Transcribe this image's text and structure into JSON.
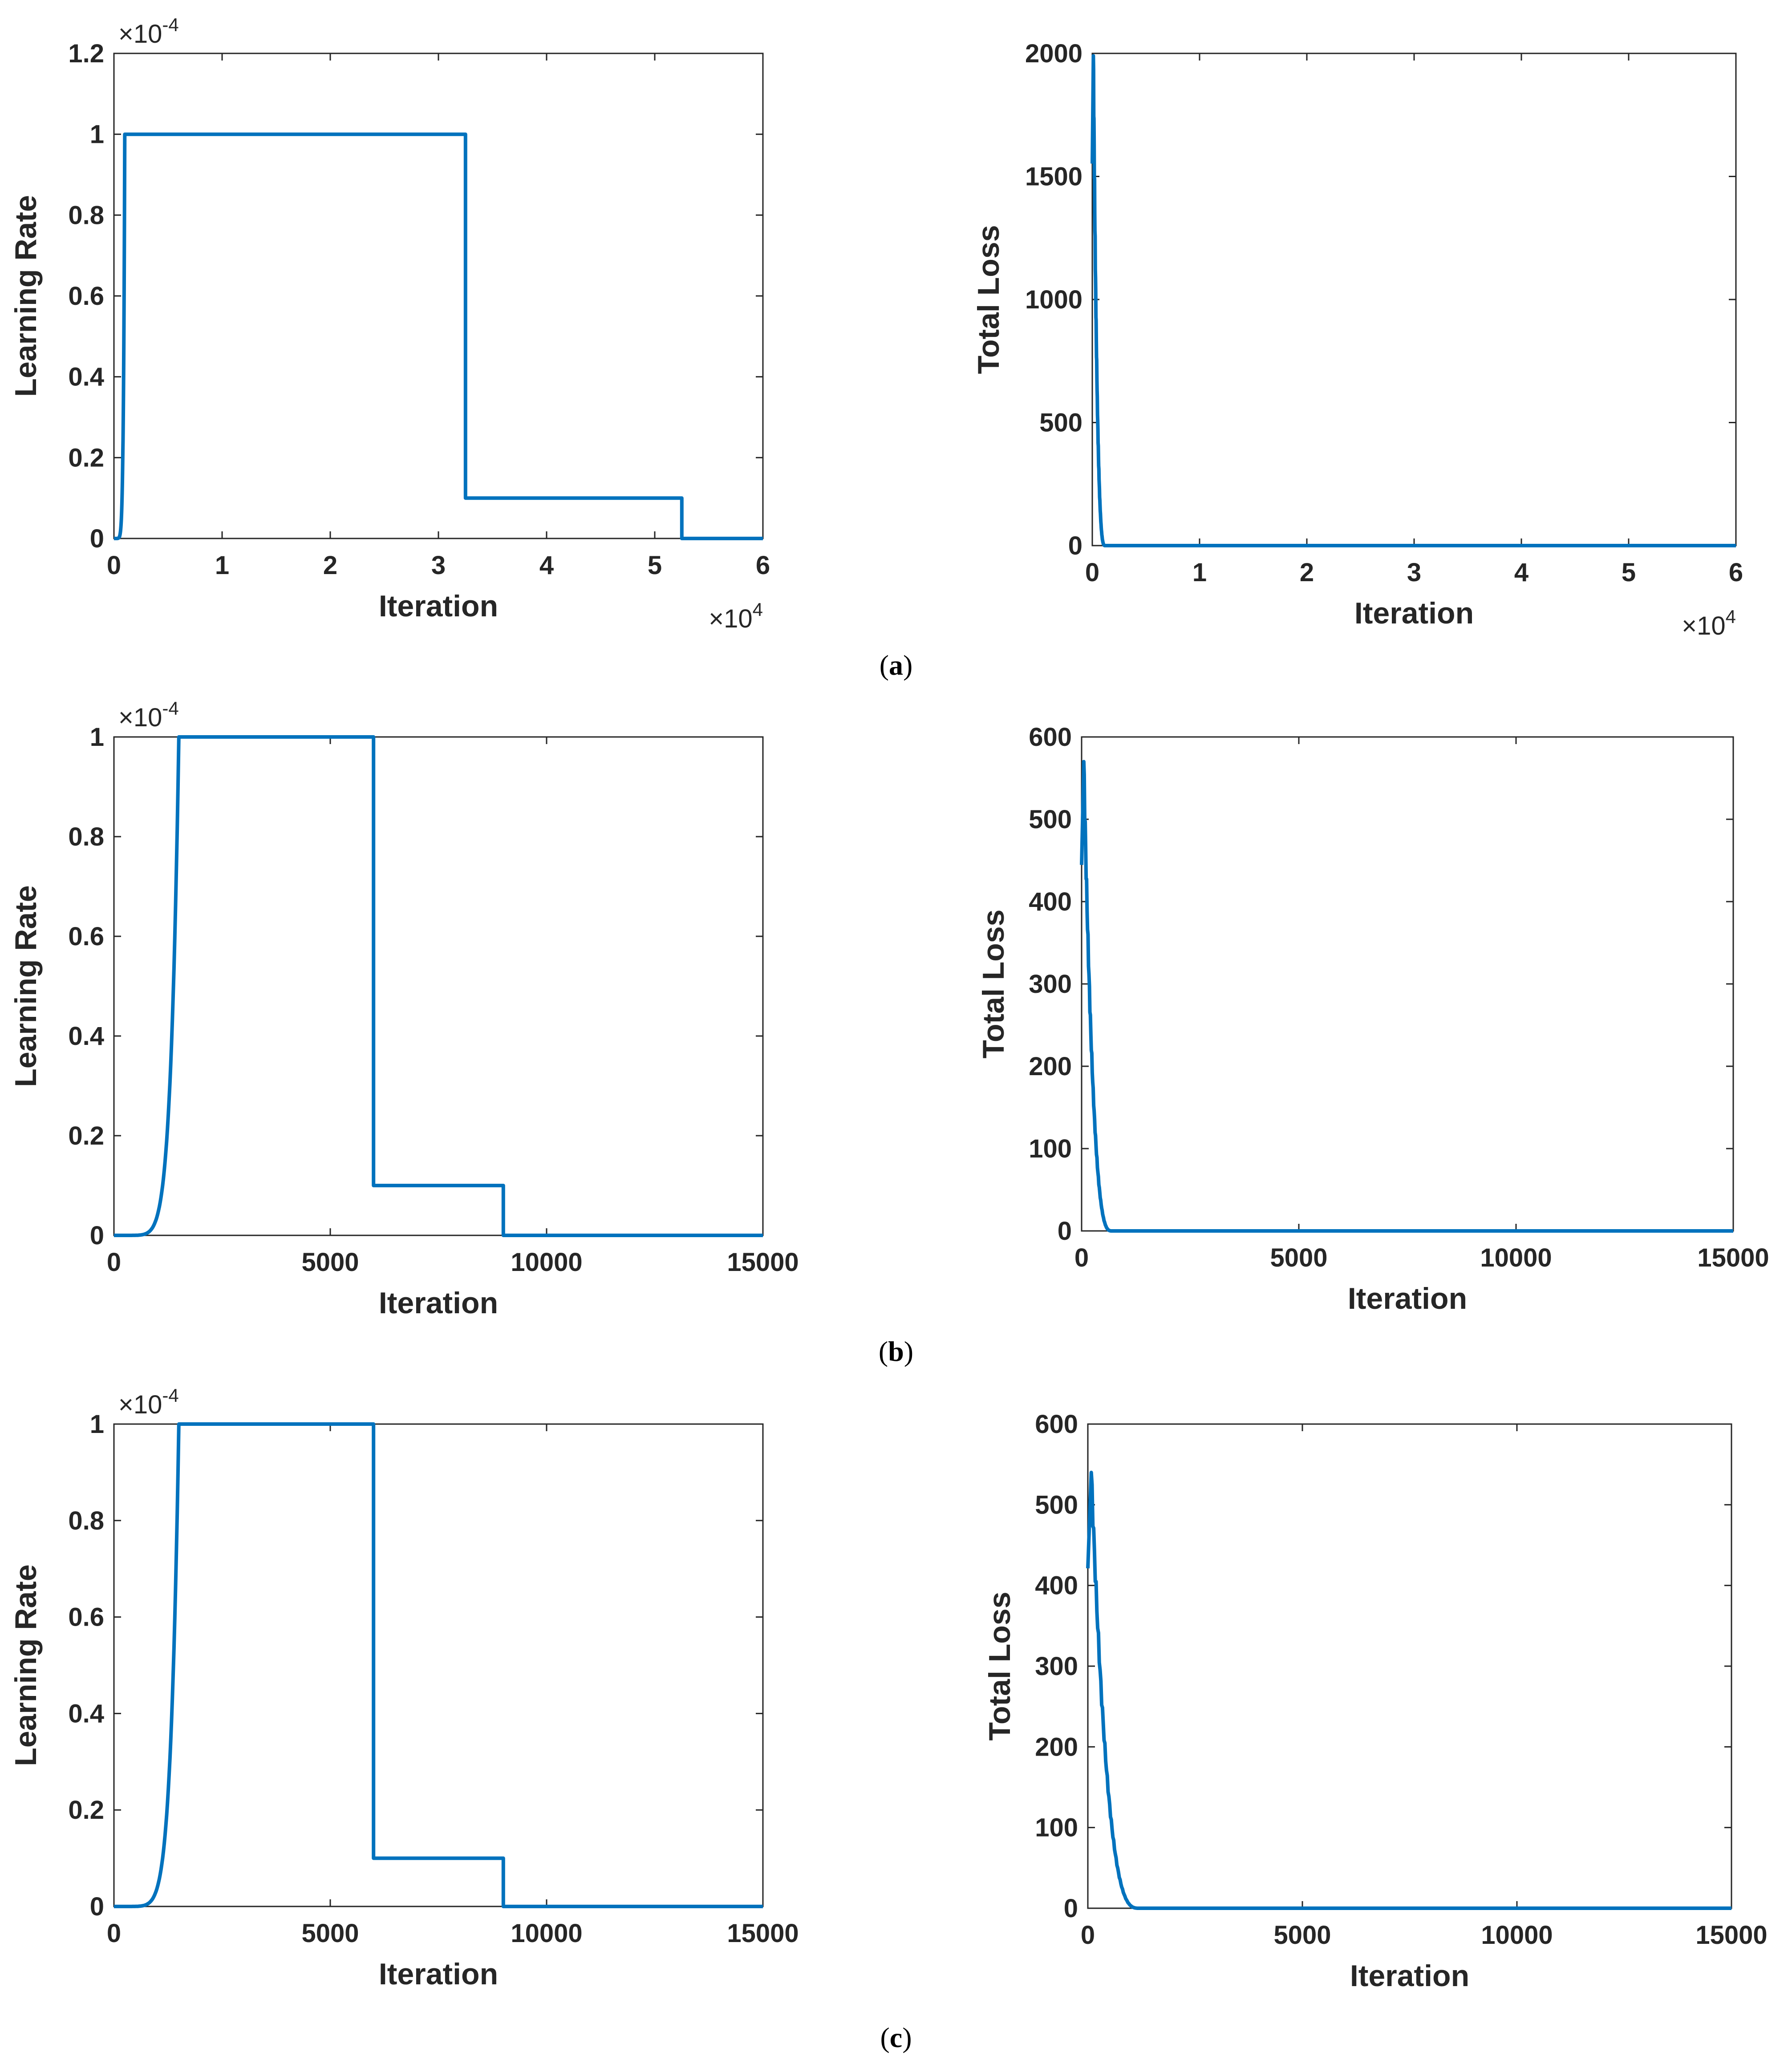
{
  "colors": {
    "line": "#0072BD",
    "axis": "#262626"
  },
  "panel_labels": [
    "a",
    "b",
    "c"
  ],
  "chart_data": [
    {
      "id": "a-lr",
      "type": "line",
      "panel": "a",
      "xlabel": "Iteration",
      "ylabel": "Learning Rate",
      "x_multiplier": "4",
      "y_multiplier": "-4",
      "xlim": [
        0,
        6
      ],
      "ylim": [
        0,
        1.2
      ],
      "xticks": [
        0,
        1,
        2,
        3,
        4,
        5,
        6
      ],
      "yticks": [
        0,
        0.2,
        0.4,
        0.6,
        0.8,
        1,
        1.2
      ],
      "series": [
        {
          "name": "learning rate",
          "shape": "warmup_step",
          "x": [
            0,
            0.06,
            0.1,
            3.25,
            3.25,
            5.25,
            5.25,
            6
          ],
          "y": [
            0,
            0.1,
            1,
            1,
            0.1,
            0.1,
            0,
            0
          ]
        }
      ]
    },
    {
      "id": "a-loss",
      "type": "line",
      "panel": "a",
      "xlabel": "Iteration",
      "ylabel": "Total Loss",
      "x_multiplier": "4",
      "y_multiplier": null,
      "xlim": [
        0,
        6
      ],
      "ylim": [
        0,
        2000
      ],
      "xticks": [
        0,
        1,
        2,
        3,
        4,
        5,
        6
      ],
      "yticks": [
        0,
        500,
        1000,
        1500,
        2000
      ],
      "series": [
        {
          "name": "total loss",
          "shape": "decay",
          "peak_x": 0.01,
          "peak_y": 1990,
          "decay_end_x": 0.12,
          "end_x": 6
        }
      ]
    },
    {
      "id": "b-lr",
      "type": "line",
      "panel": "b",
      "xlabel": "Iteration",
      "ylabel": "Learning Rate",
      "x_multiplier": null,
      "y_multiplier": "-4",
      "xlim": [
        0,
        15000
      ],
      "ylim": [
        0,
        1
      ],
      "xticks": [
        0,
        5000,
        10000,
        15000
      ],
      "yticks": [
        0,
        0.2,
        0.4,
        0.6,
        0.8,
        1
      ],
      "series": [
        {
          "name": "learning rate",
          "shape": "warmup_step",
          "x": [
            0,
            1000,
            1500,
            6000,
            6000,
            9000,
            9000,
            15000
          ],
          "y": [
            0,
            0.02,
            1,
            1,
            0.1,
            0.1,
            0,
            0
          ]
        }
      ]
    },
    {
      "id": "b-loss",
      "type": "line",
      "panel": "b",
      "xlabel": "Iteration",
      "ylabel": "Total Loss",
      "x_multiplier": null,
      "y_multiplier": null,
      "xlim": [
        0,
        15000
      ],
      "ylim": [
        0,
        600
      ],
      "xticks": [
        0,
        5000,
        10000,
        15000
      ],
      "yticks": [
        0,
        100,
        200,
        300,
        400,
        500,
        600
      ],
      "series": [
        {
          "name": "total loss",
          "shape": "decay",
          "peak_x": 50,
          "peak_y": 570,
          "decay_end_x": 700,
          "end_x": 15000
        }
      ]
    },
    {
      "id": "c-lr",
      "type": "line",
      "panel": "c",
      "xlabel": "Iteration",
      "ylabel": "Learning Rate",
      "x_multiplier": null,
      "y_multiplier": "-4",
      "xlim": [
        0,
        15000
      ],
      "ylim": [
        0,
        1
      ],
      "xticks": [
        0,
        5000,
        10000,
        15000
      ],
      "yticks": [
        0,
        0.2,
        0.4,
        0.6,
        0.8,
        1
      ],
      "series": [
        {
          "name": "learning rate",
          "shape": "warmup_step",
          "x": [
            0,
            1000,
            1500,
            6000,
            6000,
            9000,
            9000,
            15000
          ],
          "y": [
            0,
            0.02,
            1,
            1,
            0.1,
            0.1,
            0,
            0
          ]
        }
      ]
    },
    {
      "id": "c-loss",
      "type": "line",
      "panel": "c",
      "xlabel": "Iteration",
      "ylabel": "Total Loss",
      "x_multiplier": null,
      "y_multiplier": null,
      "xlim": [
        0,
        15000
      ],
      "ylim": [
        0,
        600
      ],
      "xticks": [
        0,
        5000,
        10000,
        15000
      ],
      "yticks": [
        0,
        100,
        200,
        300,
        400,
        500,
        600
      ],
      "series": [
        {
          "name": "total loss",
          "shape": "decay",
          "peak_x": 80,
          "peak_y": 540,
          "decay_end_x": 1200,
          "end_x": 15000
        }
      ]
    }
  ]
}
